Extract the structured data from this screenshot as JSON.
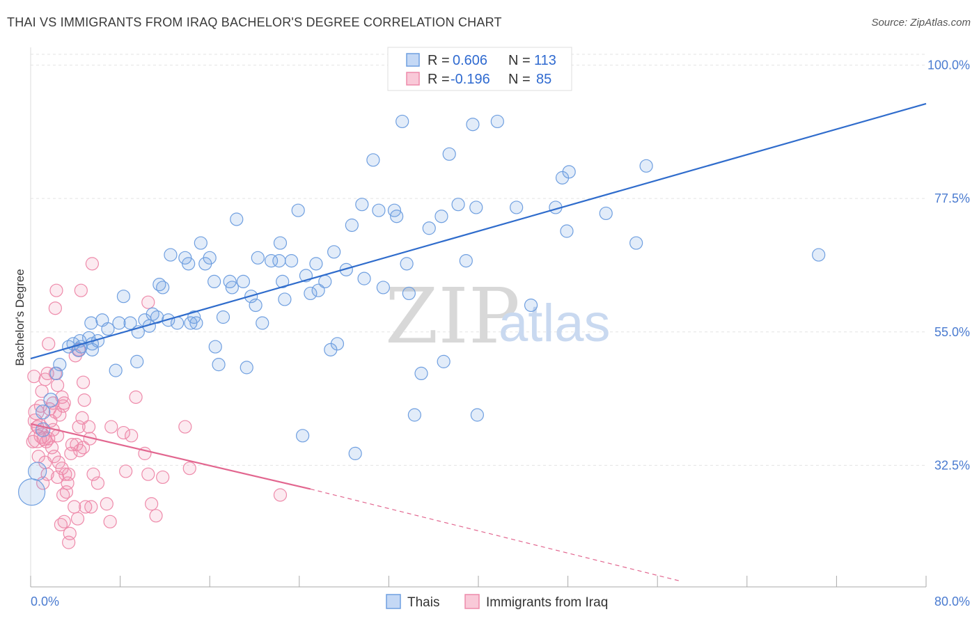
{
  "title": "THAI VS IMMIGRANTS FROM IRAQ BACHELOR'S DEGREE CORRELATION CHART",
  "source": "Source: ZipAtlas.com",
  "watermark": {
    "zip": "ZIP",
    "atlas": "atlas"
  },
  "colors": {
    "thai": "#6f9fe0",
    "thai_line": "#2f6ccc",
    "iraq": "#ee8aaa",
    "iraq_line": "#e2668f",
    "axis_text": "#4a7bd0"
  },
  "stats": {
    "rows": [
      {
        "r_label": "R =",
        "r_value": "0.606",
        "n_label": "N =",
        "n_value": "113"
      },
      {
        "r_label": "R =",
        "r_value": "-0.196",
        "n_label": "N =",
        "n_value": "85"
      }
    ]
  },
  "chart_data": {
    "type": "scatter",
    "title": "THAI VS IMMIGRANTS FROM IRAQ BACHELOR'S DEGREE CORRELATION CHART",
    "xlabel": "",
    "ylabel": "Bachelor's Degree",
    "xlim": [
      0,
      80
    ],
    "ylim": [
      12,
      103
    ],
    "x_tick_labels": [
      "0.0%",
      "80.0%"
    ],
    "y_ticks": [
      32.5,
      55.0,
      77.5,
      100.0
    ],
    "y_tick_labels": [
      "32.5%",
      "55.0%",
      "77.5%",
      "100.0%"
    ],
    "grid": true,
    "legend_position": "bottom",
    "series": [
      {
        "name": "Thais",
        "trend": [
          [
            0,
            50.5
          ],
          [
            80,
            93.5
          ]
        ],
        "points": [
          [
            0.1,
            28.0,
            18
          ],
          [
            0.6,
            31.5,
            12
          ],
          [
            1.1,
            38.5,
            9
          ],
          [
            1.1,
            41.5,
            9
          ],
          [
            1.8,
            43.5,
            9
          ],
          [
            2.3,
            48.0,
            8
          ],
          [
            2.6,
            49.5,
            8
          ],
          [
            3.4,
            52.5,
            8
          ],
          [
            4.3,
            52.0,
            9
          ],
          [
            4.5,
            52.5,
            8
          ],
          [
            3.8,
            53.0,
            8
          ],
          [
            4.4,
            53.5,
            8
          ],
          [
            5.5,
            53.0,
            8
          ],
          [
            5.2,
            54.0,
            8
          ],
          [
            5.5,
            52.0,
            8
          ],
          [
            6.0,
            53.5,
            8
          ],
          [
            5.4,
            56.5,
            8
          ],
          [
            6.4,
            57.0,
            8
          ],
          [
            6.9,
            55.5,
            8
          ],
          [
            7.6,
            48.5,
            8
          ],
          [
            7.9,
            56.5,
            8
          ],
          [
            8.3,
            61.0,
            8
          ],
          [
            8.9,
            56.5,
            8
          ],
          [
            9.5,
            50.0,
            8
          ],
          [
            9.6,
            55.0,
            8
          ],
          [
            10.2,
            57.0,
            8
          ],
          [
            10.6,
            56.0,
            8
          ],
          [
            10.9,
            58.0,
            8
          ],
          [
            11.3,
            57.5,
            8
          ],
          [
            11.5,
            63.0,
            8
          ],
          [
            11.8,
            62.5,
            8
          ],
          [
            12.3,
            57.0,
            8
          ],
          [
            12.5,
            68.0,
            8
          ],
          [
            13.1,
            56.5,
            8
          ],
          [
            13.8,
            67.5,
            8
          ],
          [
            14.1,
            66.5,
            8
          ],
          [
            14.3,
            56.5,
            8
          ],
          [
            14.6,
            57.5,
            8
          ],
          [
            14.8,
            56.5,
            8
          ],
          [
            15.2,
            70.0,
            8
          ],
          [
            15.6,
            66.5,
            8
          ],
          [
            16.0,
            67.5,
            8
          ],
          [
            16.4,
            63.5,
            8
          ],
          [
            16.5,
            52.5,
            8
          ],
          [
            16.8,
            49.5,
            8
          ],
          [
            17.2,
            57.5,
            8
          ],
          [
            17.8,
            63.5,
            8
          ],
          [
            18.0,
            62.5,
            8
          ],
          [
            18.4,
            74.0,
            8
          ],
          [
            19.0,
            63.5,
            8
          ],
          [
            19.3,
            49.0,
            8
          ],
          [
            19.7,
            61.0,
            8
          ],
          [
            20.1,
            59.5,
            8
          ],
          [
            20.3,
            67.5,
            8
          ],
          [
            20.7,
            56.5,
            8
          ],
          [
            21.5,
            67.0,
            8
          ],
          [
            22.2,
            67.0,
            8
          ],
          [
            22.3,
            70.0,
            8
          ],
          [
            22.5,
            63.5,
            8
          ],
          [
            22.7,
            60.5,
            8
          ],
          [
            23.3,
            67.0,
            8
          ],
          [
            23.9,
            75.5,
            8
          ],
          [
            24.3,
            37.5,
            8
          ],
          [
            24.6,
            64.5,
            8
          ],
          [
            25.0,
            61.5,
            8
          ],
          [
            25.5,
            66.5,
            8
          ],
          [
            25.7,
            62.0,
            8
          ],
          [
            26.3,
            63.5,
            8
          ],
          [
            27.1,
            68.5,
            8
          ],
          [
            26.8,
            52.0,
            8
          ],
          [
            27.4,
            53.0,
            8
          ],
          [
            28.2,
            65.5,
            8
          ],
          [
            28.7,
            73.0,
            8
          ],
          [
            29.0,
            34.5,
            8
          ],
          [
            29.6,
            76.5,
            8
          ],
          [
            29.8,
            64.0,
            8
          ],
          [
            30.6,
            84.0,
            8
          ],
          [
            31.1,
            75.5,
            8
          ],
          [
            31.5,
            62.5,
            8
          ],
          [
            32.5,
            75.5,
            8
          ],
          [
            32.7,
            74.5,
            8
          ],
          [
            33.2,
            90.5,
            8
          ],
          [
            33.6,
            66.5,
            8
          ],
          [
            33.8,
            61.5,
            8
          ],
          [
            34.3,
            41.0,
            8
          ],
          [
            34.9,
            48.0,
            8
          ],
          [
            35.6,
            72.5,
            8
          ],
          [
            36.7,
            74.5,
            8
          ],
          [
            36.9,
            50.0,
            8
          ],
          [
            37.4,
            85.0,
            8
          ],
          [
            38.2,
            76.5,
            8
          ],
          [
            38.9,
            67.0,
            8
          ],
          [
            39.5,
            90.0,
            8
          ],
          [
            39.8,
            76.0,
            8
          ],
          [
            39.9,
            41.0,
            8
          ],
          [
            41.7,
            90.5,
            8
          ],
          [
            43.4,
            76.0,
            8
          ],
          [
            44.7,
            59.5,
            8
          ],
          [
            46.9,
            76.0,
            8
          ],
          [
            47.5,
            81.0,
            8
          ],
          [
            47.9,
            72.0,
            8
          ],
          [
            48.1,
            82.0,
            8
          ],
          [
            51.4,
            75.0,
            8
          ],
          [
            54.1,
            70.0,
            8
          ],
          [
            55.0,
            83.0,
            8
          ],
          [
            70.4,
            68.0,
            8
          ]
        ]
      },
      {
        "name": "Immigrants from Iraq",
        "trend": [
          [
            0,
            39.5
          ],
          [
            25,
            28.5
          ]
        ],
        "trend_dashed": [
          [
            25,
            28.5
          ],
          [
            58,
            13.0
          ]
        ],
        "points": [
          [
            0.5,
            41.5,
            10
          ],
          [
            0.4,
            40.0,
            9
          ],
          [
            0.8,
            39.0,
            10
          ],
          [
            0.6,
            37.0,
            12
          ],
          [
            1.0,
            37.5,
            10
          ],
          [
            1.2,
            37.0,
            9
          ],
          [
            1.4,
            36.5,
            8
          ],
          [
            1.6,
            37.0,
            8
          ],
          [
            0.3,
            47.5,
            8
          ],
          [
            1.0,
            45.0,
            8
          ],
          [
            1.3,
            47.0,
            8
          ],
          [
            1.7,
            42.0,
            8
          ],
          [
            1.6,
            53.0,
            8
          ],
          [
            2.2,
            48.0,
            8
          ],
          [
            2.4,
            46.0,
            8
          ],
          [
            2.0,
            43.0,
            8
          ],
          [
            2.6,
            41.0,
            8
          ],
          [
            2.8,
            44.0,
            8
          ],
          [
            3.0,
            43.0,
            8
          ],
          [
            2.2,
            41.5,
            8
          ],
          [
            2.0,
            38.5,
            8
          ],
          [
            2.4,
            37.5,
            8
          ],
          [
            1.9,
            35.5,
            8
          ],
          [
            2.1,
            34.0,
            8
          ],
          [
            2.5,
            33.0,
            8
          ],
          [
            2.8,
            32.0,
            8
          ],
          [
            3.1,
            31.0,
            8
          ],
          [
            3.4,
            31.0,
            8
          ],
          [
            3.3,
            29.5,
            8
          ],
          [
            3.2,
            28.0,
            8
          ],
          [
            2.9,
            27.5,
            8
          ],
          [
            2.4,
            30.5,
            8
          ],
          [
            1.5,
            31.0,
            8
          ],
          [
            3.0,
            23.0,
            8
          ],
          [
            3.5,
            21.0,
            8
          ],
          [
            3.4,
            19.5,
            8
          ],
          [
            3.9,
            25.5,
            8
          ],
          [
            4.2,
            23.5,
            8
          ],
          [
            4.0,
            51.0,
            8
          ],
          [
            4.5,
            62.0,
            8
          ],
          [
            2.3,
            62.0,
            8
          ],
          [
            2.2,
            59.0,
            8
          ],
          [
            4.7,
            46.5,
            8
          ],
          [
            4.8,
            43.5,
            8
          ],
          [
            4.6,
            40.5,
            8
          ],
          [
            4.3,
            39.0,
            8
          ],
          [
            4.1,
            36.0,
            8
          ],
          [
            4.4,
            35.0,
            8
          ],
          [
            4.7,
            35.5,
            8
          ],
          [
            5.2,
            39.0,
            8
          ],
          [
            5.3,
            37.0,
            8
          ],
          [
            5.6,
            31.0,
            8
          ],
          [
            5.4,
            25.5,
            8
          ],
          [
            4.9,
            25.5,
            8
          ],
          [
            6.8,
            26.0,
            8
          ],
          [
            7.1,
            23.0,
            8
          ],
          [
            5.5,
            66.5,
            8
          ],
          [
            7.2,
            39.0,
            8
          ],
          [
            8.3,
            38.0,
            8
          ],
          [
            8.5,
            31.5,
            8
          ],
          [
            9.0,
            37.5,
            8
          ],
          [
            9.4,
            44.0,
            8
          ],
          [
            10.2,
            34.5,
            8
          ],
          [
            10.5,
            31.0,
            8
          ],
          [
            10.8,
            26.0,
            8
          ],
          [
            11.2,
            24.0,
            8
          ],
          [
            11.8,
            30.5,
            8
          ],
          [
            13.8,
            39.0,
            8
          ],
          [
            14.2,
            32.0,
            8
          ],
          [
            22.3,
            27.5,
            8
          ],
          [
            10.5,
            60.0,
            8
          ],
          [
            1.1,
            29.5,
            8
          ],
          [
            0.7,
            34.0,
            8
          ],
          [
            3.6,
            34.5,
            8
          ],
          [
            2.7,
            22.5,
            8
          ],
          [
            1.8,
            40.0,
            8
          ],
          [
            0.9,
            42.5,
            8
          ],
          [
            1.5,
            48.0,
            8
          ],
          [
            4.3,
            52.0,
            8
          ],
          [
            2.9,
            42.5,
            8
          ],
          [
            3.7,
            36.0,
            8
          ],
          [
            0.2,
            36.5,
            8
          ],
          [
            6.0,
            29.5,
            8
          ],
          [
            1.3,
            33.0,
            8
          ],
          [
            0.6,
            39.0,
            8
          ]
        ]
      }
    ]
  },
  "legend": {
    "items": [
      {
        "label": "Thais"
      },
      {
        "label": "Immigrants from Iraq"
      }
    ]
  }
}
